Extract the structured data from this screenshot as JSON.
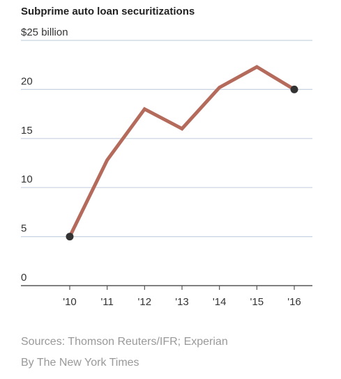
{
  "chart_data": {
    "type": "line",
    "title": "Subprime auto loan securitizations",
    "y_unit_label": "$25 billion",
    "xlabel": "",
    "ylabel": "",
    "categories": [
      "'10",
      "'11",
      "'12",
      "'13",
      "'14",
      "'15",
      "'16"
    ],
    "series": [
      {
        "values": [
          5.0,
          12.8,
          18.0,
          16.0,
          20.2,
          22.3,
          20.0
        ]
      }
    ],
    "marker_points": [
      0,
      6
    ],
    "y_ticks": [
      0,
      5,
      10,
      15,
      20,
      25
    ],
    "y_tick_labels": [
      "0",
      "5",
      "10",
      "15",
      "20",
      "$25 billion"
    ],
    "ylim": [
      0,
      25
    ],
    "grid": true,
    "colors": {
      "line": "#B56B5C",
      "marker": "#333333",
      "grid": "#C7D3E0",
      "axis": "#555555"
    }
  },
  "footer": {
    "source": "Sources: Thomson Reuters/IFR; Experian",
    "credit": "By The New York Times"
  }
}
